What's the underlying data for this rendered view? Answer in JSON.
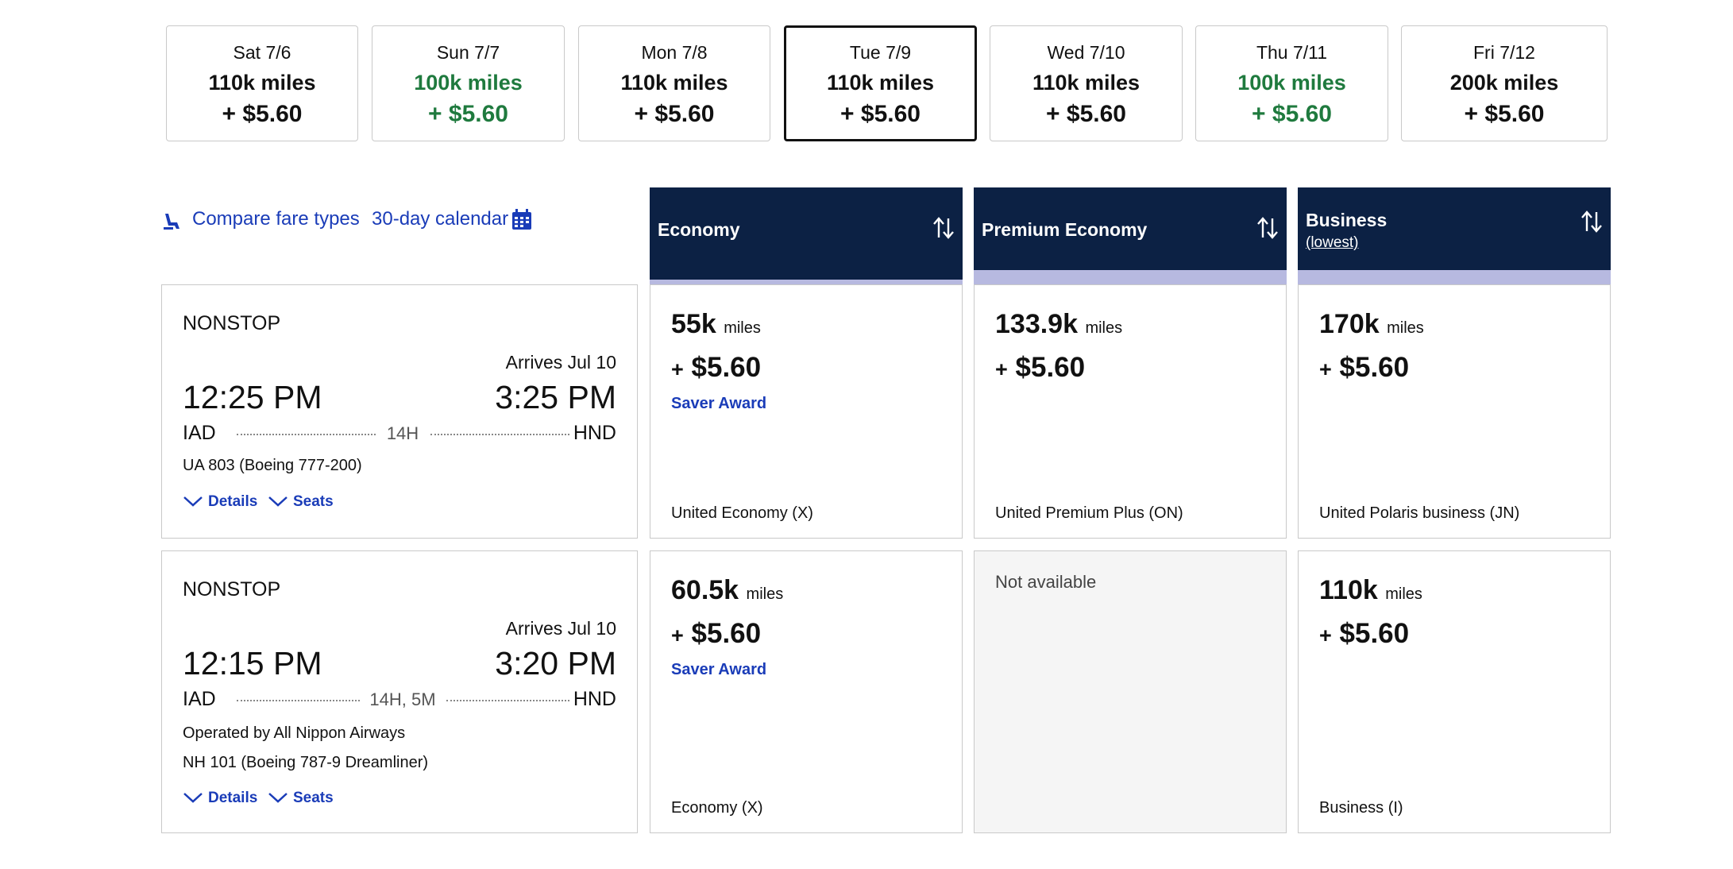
{
  "dates": [
    {
      "label": "Sat 7/6",
      "miles": "110k miles",
      "tax": "+ $5.60",
      "highlight": false,
      "selected": false
    },
    {
      "label": "Sun 7/7",
      "miles": "100k miles",
      "tax": "+ $5.60",
      "highlight": true,
      "selected": false
    },
    {
      "label": "Mon 7/8",
      "miles": "110k miles",
      "tax": "+ $5.60",
      "highlight": false,
      "selected": false
    },
    {
      "label": "Tue 7/9",
      "miles": "110k miles",
      "tax": "+ $5.60",
      "highlight": false,
      "selected": true
    },
    {
      "label": "Wed 7/10",
      "miles": "110k miles",
      "tax": "+ $5.60",
      "highlight": false,
      "selected": false
    },
    {
      "label": "Thu 7/11",
      "miles": "100k miles",
      "tax": "+ $5.60",
      "highlight": true,
      "selected": false
    },
    {
      "label": "Fri 7/12",
      "miles": "200k miles",
      "tax": "+ $5.60",
      "highlight": false,
      "selected": false
    }
  ],
  "toolbar": {
    "compare_label": "Compare fare types",
    "calendar_label": "30-day calendar"
  },
  "columns": [
    {
      "title": "Economy",
      "subtitle": ""
    },
    {
      "title": "Premium Economy",
      "subtitle": ""
    },
    {
      "title": "Business",
      "subtitle": "(lowest)"
    }
  ],
  "flights": [
    {
      "stops": "NONSTOP",
      "arrives": "Arrives Jul 10",
      "depart_time": "12:25 PM",
      "arrive_time": "3:25 PM",
      "origin": "IAD",
      "destination": "HND",
      "duration": "14H",
      "operated_by": "",
      "flight_info": "UA 803 (Boeing 777-200)",
      "details_label": "Details",
      "seats_label": "Seats",
      "fares": [
        {
          "available": true,
          "miles": "55k",
          "miles_unit": "miles",
          "plus": "+",
          "tax": "$5.60",
          "saver": "Saver Award",
          "cabin": "United Economy (X)"
        },
        {
          "available": true,
          "miles": "133.9k",
          "miles_unit": "miles",
          "plus": "+",
          "tax": "$5.60",
          "saver": "",
          "cabin": "United Premium Plus (ON)"
        },
        {
          "available": true,
          "miles": "170k",
          "miles_unit": "miles",
          "plus": "+",
          "tax": "$5.60",
          "saver": "",
          "cabin": "United Polaris business (JN)"
        }
      ]
    },
    {
      "stops": "NONSTOP",
      "arrives": "Arrives Jul 10",
      "depart_time": "12:15 PM",
      "arrive_time": "3:20 PM",
      "origin": "IAD",
      "destination": "HND",
      "duration": "14H, 5M",
      "operated_by": "Operated by All Nippon Airways",
      "flight_info": "NH 101 (Boeing 787-9 Dreamliner)",
      "details_label": "Details",
      "seats_label": "Seats",
      "fares": [
        {
          "available": true,
          "miles": "60.5k",
          "miles_unit": "miles",
          "plus": "+",
          "tax": "$5.60",
          "saver": "Saver Award",
          "cabin": "Economy (X)"
        },
        {
          "available": false,
          "na_text": "Not available"
        },
        {
          "available": true,
          "miles": "110k",
          "miles_unit": "miles",
          "plus": "+",
          "tax": "$5.60",
          "saver": "",
          "cabin": "Business (I)"
        }
      ]
    }
  ],
  "colors": {
    "navy": "#0c2144",
    "band": "#b7b9e0",
    "link": "#1a3cb8",
    "green": "#1f7a3e"
  }
}
